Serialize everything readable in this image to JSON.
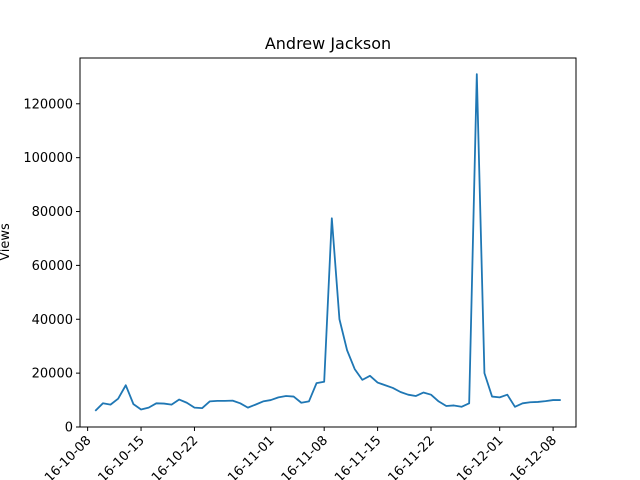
{
  "chart_data": {
    "type": "line",
    "title": "Andrew Jackson",
    "xlabel": "",
    "ylabel": "Views",
    "ylim": [
      0,
      137000
    ],
    "xlim_dates": [
      "2016-10-07",
      "2016-12-11"
    ],
    "grid": false,
    "yticks": [
      0,
      20000,
      40000,
      60000,
      80000,
      100000,
      120000
    ],
    "xtick_dates": [
      "2016-10-08",
      "2016-10-15",
      "2016-10-22",
      "2016-11-01",
      "2016-11-08",
      "2016-11-15",
      "2016-11-22",
      "2016-12-01",
      "2016-12-08"
    ],
    "xtick_labels": [
      "16-10-08",
      "16-10-15",
      "16-10-22",
      "16-11-01",
      "16-11-08",
      "16-11-15",
      "16-11-22",
      "16-12-01",
      "16-12-08"
    ],
    "colors": {
      "line": "#1f77b4"
    },
    "series": [
      {
        "x": [
          "2016-10-09",
          "2016-10-10",
          "2016-10-11",
          "2016-10-12",
          "2016-10-13",
          "2016-10-14",
          "2016-10-15",
          "2016-10-16",
          "2016-10-17",
          "2016-10-18",
          "2016-10-19",
          "2016-10-20",
          "2016-10-21",
          "2016-10-22",
          "2016-10-23",
          "2016-10-24",
          "2016-10-25",
          "2016-10-26",
          "2016-10-27",
          "2016-10-28",
          "2016-10-29",
          "2016-10-30",
          "2016-10-31",
          "2016-11-01",
          "2016-11-02",
          "2016-11-03",
          "2016-11-04",
          "2016-11-05",
          "2016-11-06",
          "2016-11-07",
          "2016-11-08",
          "2016-11-09",
          "2016-11-10",
          "2016-11-11",
          "2016-11-12",
          "2016-11-13",
          "2016-11-14",
          "2016-11-15",
          "2016-11-16",
          "2016-11-17",
          "2016-11-18",
          "2016-11-19",
          "2016-11-20",
          "2016-11-21",
          "2016-11-22",
          "2016-11-23",
          "2016-11-24",
          "2016-11-25",
          "2016-11-26",
          "2016-11-27",
          "2016-11-28",
          "2016-11-29",
          "2016-11-30",
          "2016-12-01",
          "2016-12-02",
          "2016-12-03",
          "2016-12-04",
          "2016-12-05",
          "2016-12-06",
          "2016-12-07",
          "2016-12-08",
          "2016-12-09"
        ],
        "values": [
          6000,
          8800,
          8300,
          10500,
          15500,
          8500,
          6500,
          7200,
          8800,
          8700,
          8300,
          10200,
          9000,
          7200,
          7000,
          9500,
          9700,
          9700,
          9800,
          8800,
          7200,
          8300,
          9500,
          10000,
          11000,
          11500,
          11300,
          9000,
          9500,
          16300,
          16800,
          77500,
          40000,
          28500,
          21500,
          17500,
          19000,
          16500,
          15500,
          14500,
          13000,
          12000,
          11500,
          12800,
          12000,
          9500,
          7800,
          8000,
          7500,
          8800,
          131000,
          20000,
          11300,
          11000,
          12000,
          7500,
          8800,
          9200,
          9300,
          9600,
          10000,
          10000
        ]
      }
    ]
  }
}
